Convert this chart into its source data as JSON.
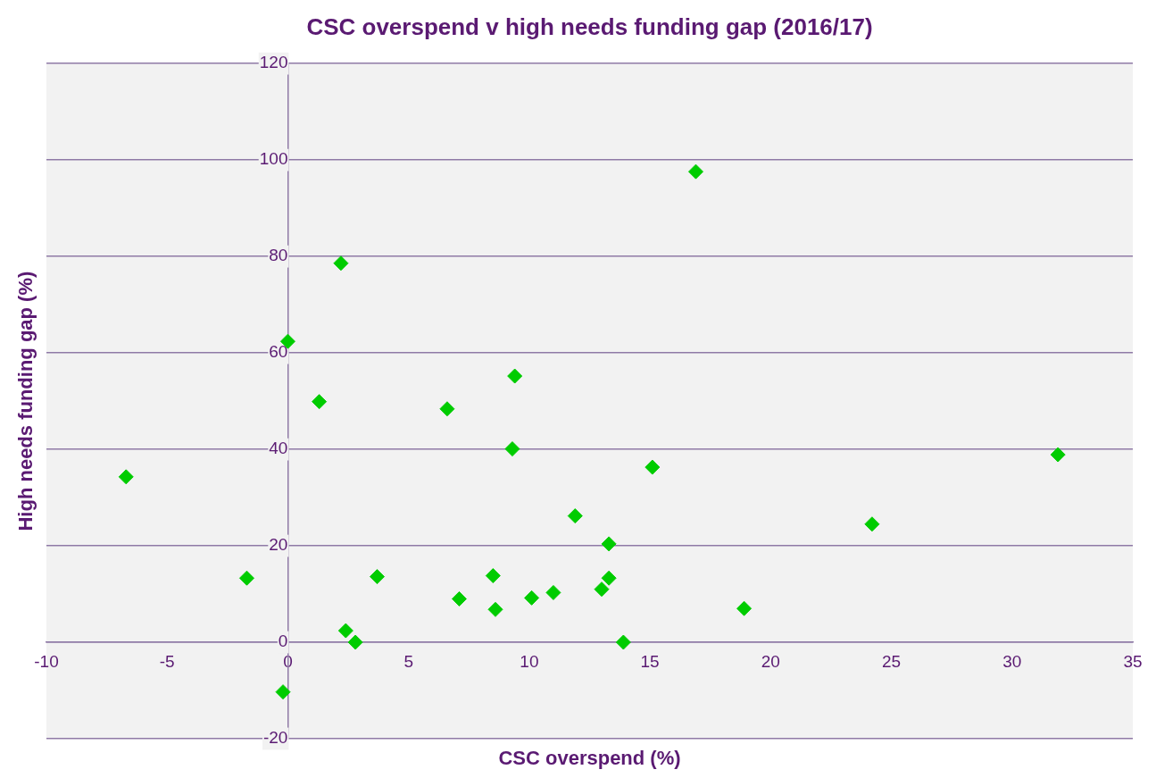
{
  "chart_data": {
    "type": "scatter",
    "title": "CSC overspend v high needs funding gap (2016/17)",
    "xlabel": "CSC overspend (%)",
    "ylabel": "High needs funding gap (%)",
    "series": [
      {
        "color": "#00cc00",
        "x": [
          -6.7,
          -1.7,
          -0.2,
          0,
          1.3,
          2.2,
          2.4,
          2.8,
          3.7,
          6.6,
          7.1,
          8.5,
          8.6,
          9.3,
          9.4,
          10.1,
          11.0,
          11.9,
          13.0,
          13.3,
          13.3,
          13.9,
          15.1,
          16.9,
          18.9,
          24.2,
          31.9
        ],
        "values": [
          34.3,
          13.3,
          -10.3,
          62.4,
          49.9,
          78.6,
          2.4,
          0,
          13.6,
          48.4,
          9.0,
          13.8,
          6.8,
          40.1,
          55.2,
          9.2,
          10.3,
          26.2,
          11.0,
          20.4,
          13.3,
          0,
          36.3,
          97.6,
          7.0,
          24.5,
          38.9
        ]
      }
    ],
    "xlim": [
      -10,
      35
    ],
    "xticks": [
      -10,
      -5,
      0,
      5,
      10,
      15,
      20,
      25,
      30,
      35
    ],
    "ylim": [
      -20,
      120
    ],
    "yticks": [
      -20,
      0,
      20,
      40,
      60,
      80,
      100,
      120
    ],
    "grid": "y",
    "marker": "diamond",
    "legend": false
  }
}
